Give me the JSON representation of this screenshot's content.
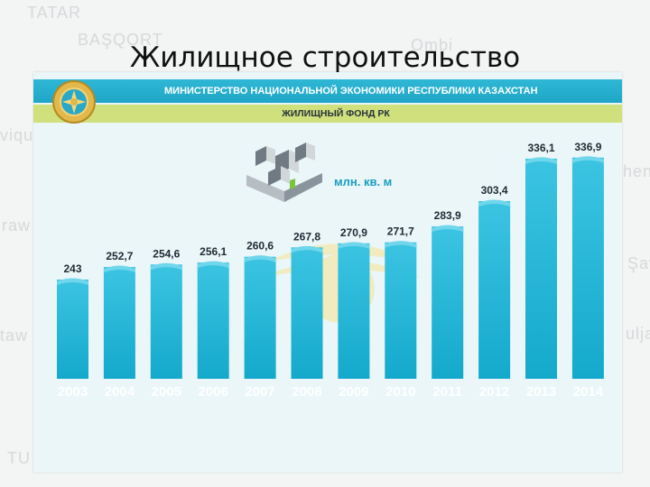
{
  "page": {
    "title": "Жилищное строительство"
  },
  "header": {
    "ministry": "МИНИСТЕРСТВО НАЦИОНАЛЬНОЙ ЭКОНОМИКИ РЕСПУБЛИКИ КАЗАХСТАН",
    "subtitle": "ЖИЛИЩНЫЙ ФОНД РК"
  },
  "background_map": {
    "labels": [
      "TATAR",
      "Ombi",
      "viqu",
      "raw",
      "taw",
      "TU",
      "uljar",
      "Şaw",
      "hen",
      "BAŞQORT"
    ]
  },
  "chart_data": {
    "type": "bar",
    "unit": "млн. кв. м",
    "categories": [
      "2003",
      "2004",
      "2005",
      "2006",
      "2007",
      "2008",
      "2009",
      "2010",
      "2011",
      "2012",
      "2013",
      "2014"
    ],
    "values": [
      243,
      252.7,
      254.6,
      256.1,
      260.6,
      267.8,
      270.9,
      271.7,
      283.9,
      303.4,
      336.1,
      336.9
    ],
    "value_labels": [
      "243",
      "252,7",
      "254,6",
      "256,1",
      "260,6",
      "267,8",
      "270,9",
      "271,7",
      "283,9",
      "303,4",
      "336,1",
      "336,9"
    ],
    "bar_color": "#1db5d6",
    "category_label_color": "#ffffff",
    "grid": false,
    "legend": "none"
  }
}
